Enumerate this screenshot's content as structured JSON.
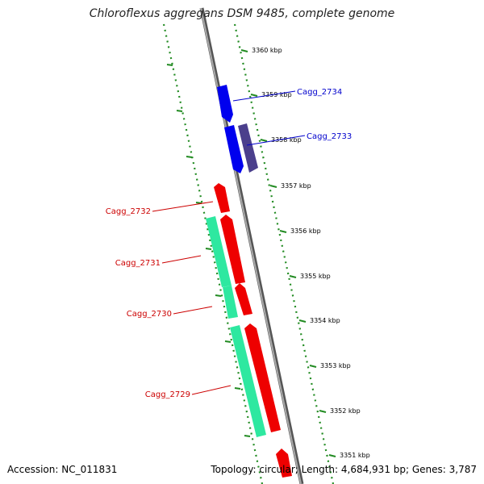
{
  "title": "Chloroflexus aggregans DSM 9485, complete genome",
  "footer": {
    "accession": "Accession: NC_011831",
    "summary": "Topology: circular; Length: 4,684,931 bp; Genes: 3,787"
  },
  "colors": {
    "backbone": "#888888",
    "tick_dots": "#228b22",
    "forward_gene": "#0000ee",
    "reverse_gene": "#ee0000",
    "rna_gene": "#2ee8a0",
    "other_gene": "#4b3f8c",
    "forward_label": "#0000cc",
    "reverse_label": "#cc0000"
  },
  "ticks": [
    "3360 kbp",
    "3359 kbp",
    "3358 kbp",
    "3357 kbp",
    "3356 kbp",
    "3355 kbp",
    "3354 kbp",
    "3353 kbp",
    "3352 kbp",
    "3351 kbp"
  ],
  "gene_labels": [
    {
      "text": "Cagg_2734",
      "strand": "forward"
    },
    {
      "text": "Cagg_2733",
      "strand": "forward"
    },
    {
      "text": "Cagg_2732",
      "strand": "reverse"
    },
    {
      "text": "Cagg_2731",
      "strand": "reverse"
    },
    {
      "text": "Cagg_2730",
      "strand": "reverse"
    },
    {
      "text": "Cagg_2729",
      "strand": "reverse"
    }
  ]
}
